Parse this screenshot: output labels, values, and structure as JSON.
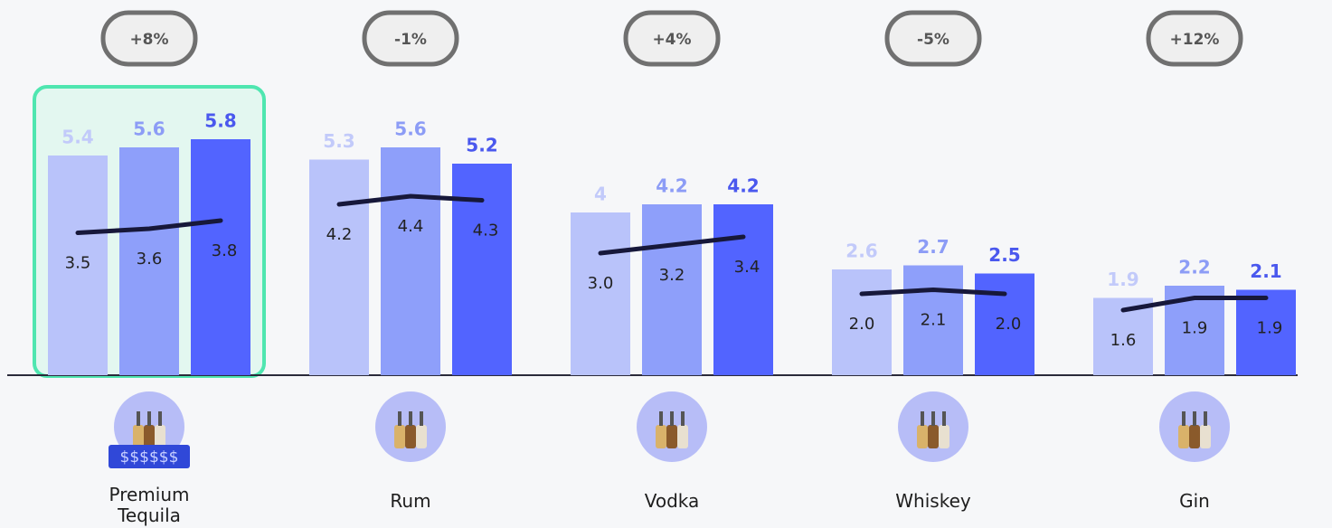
{
  "chart_data": {
    "type": "bar",
    "categories": [
      "Premium Tequila",
      "Rum",
      "Vodka",
      "Whiskey",
      "Gin"
    ],
    "badges": [
      "+8%",
      "-1%",
      "+4%",
      "-5%",
      "+12%"
    ],
    "price_label": "$$$$$$",
    "series": [
      {
        "color": "#b9c3fa",
        "label_color": "#c2cafa",
        "values": [
          5.4,
          5.3,
          4,
          2.6,
          1.9
        ]
      },
      {
        "color": "#8e9ffa",
        "label_color": "#8c9cf6",
        "values": [
          5.6,
          5.6,
          4.2,
          2.7,
          2.2
        ]
      },
      {
        "color": "#5264ff",
        "label_color": "#4a58ee",
        "values": [
          5.8,
          5.2,
          4.2,
          2.5,
          2.1
        ]
      }
    ],
    "line": {
      "color": "#17183a",
      "values": [
        [
          3.5,
          3.6,
          3.8
        ],
        [
          4.2,
          4.4,
          4.3
        ],
        [
          3.0,
          3.2,
          3.4
        ],
        [
          2.0,
          2.1,
          2.0
        ],
        [
          1.6,
          1.9,
          1.9
        ]
      ],
      "value_labels": [
        [
          "3.5",
          "3.6",
          "3.8"
        ],
        [
          "4.2",
          "4.4",
          "4.3"
        ],
        [
          "3.0",
          "3.2",
          "3.4"
        ],
        [
          "2.0",
          "2.1",
          "2.0"
        ],
        [
          "1.6",
          "1.9",
          "1.9"
        ]
      ]
    },
    "ylim": [
      0,
      9.2
    ]
  }
}
